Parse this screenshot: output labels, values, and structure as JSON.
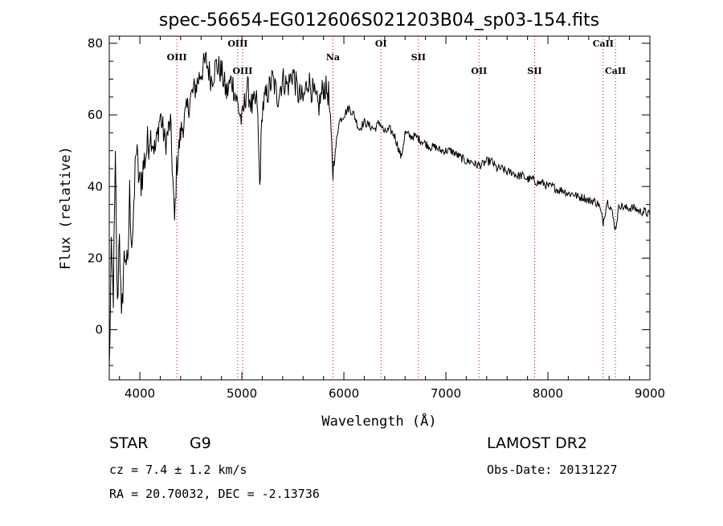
{
  "footer": {
    "obj_class": "STAR",
    "subclass": "G9",
    "survey": "LAMOST DR2",
    "cz": "cz = 7.4 ± 1.2 km/s",
    "obs_date": "Obs-Date: 20131227",
    "coords": "RA =  20.70032, DEC =  -2.13736"
  },
  "chart_data": {
    "type": "line",
    "title": "spec-56654-EG012606S021203B04_sp03-154.fits",
    "xlabel": "Wavelength (Å)",
    "ylabel": "Flux (relative)",
    "xlim": [
      3700,
      9000
    ],
    "ylim": [
      -14,
      82
    ],
    "xticks": [
      4000,
      5000,
      6000,
      7000,
      8000,
      9000
    ],
    "yticks": [
      0,
      20,
      40,
      60,
      80
    ],
    "xtick_labels": [
      "4000",
      "5000",
      "6000",
      "7000",
      "8000",
      "9000"
    ],
    "ytick_labels": [
      "0",
      "20",
      "40",
      "60",
      "80"
    ],
    "series": [
      {
        "x": [
          3700,
          3720,
          3740,
          3760,
          3780,
          3800,
          3820,
          3840,
          3860,
          3880,
          3900,
          3920,
          3940,
          3960,
          3980,
          4000,
          4050,
          4100,
          4150,
          4200,
          4250,
          4300,
          4340,
          4360,
          4400,
          4450,
          4500,
          4550,
          4600,
          4650,
          4700,
          4750,
          4800,
          4850,
          4900,
          4950,
          5000,
          5050,
          5100,
          5150,
          5175,
          5200,
          5250,
          5300,
          5350,
          5400,
          5450,
          5500,
          5550,
          5600,
          5650,
          5700,
          5750,
          5800,
          5850,
          5893,
          5950,
          6000,
          6050,
          6100,
          6150,
          6200,
          6250,
          6300,
          6350,
          6400,
          6450,
          6500,
          6563,
          6600,
          6650,
          6700,
          6750,
          6800,
          6850,
          6900,
          6950,
          7000,
          7050,
          7100,
          7150,
          7200,
          7250,
          7300,
          7350,
          7400,
          7450,
          7500,
          7550,
          7600,
          7650,
          7700,
          7750,
          7800,
          7850,
          7900,
          7950,
          8000,
          8050,
          8100,
          8150,
          8200,
          8250,
          8300,
          8350,
          8400,
          8450,
          8500,
          8542,
          8580,
          8620,
          8662,
          8700,
          8750,
          8800,
          8850,
          8900,
          8950,
          9000
        ],
        "values": [
          -12,
          20,
          10,
          46,
          5,
          30,
          0,
          18,
          22,
          15,
          38,
          25,
          30,
          52,
          45,
          40,
          48,
          55,
          50,
          60,
          52,
          58,
          30,
          45,
          55,
          60,
          65,
          68,
          72,
          75,
          70,
          74,
          72,
          66,
          70,
          64,
          58,
          68,
          62,
          64,
          40,
          62,
          66,
          70,
          65,
          70,
          68,
          72,
          66,
          64,
          70,
          66,
          62,
          68,
          66,
          44,
          58,
          60,
          62,
          60,
          56,
          58,
          57,
          56,
          58,
          55,
          56,
          54,
          48,
          55,
          54,
          54,
          53,
          52,
          51,
          51,
          50,
          50,
          50,
          49,
          48,
          47,
          47,
          46,
          46,
          47,
          47,
          45,
          45,
          44,
          44,
          43,
          43,
          42,
          42,
          41,
          41,
          40,
          40,
          39,
          39,
          38,
          38,
          37,
          37,
          36,
          36,
          35,
          30,
          36,
          34,
          28,
          35,
          34,
          34,
          34,
          33,
          33,
          32
        ]
      }
    ],
    "line_markers": [
      {
        "name": "OIII",
        "x": 4363
      },
      {
        "name": "OIII",
        "x": 4959
      },
      {
        "name": "OIII",
        "x": 5007
      },
      {
        "name": "Na",
        "x": 5893
      },
      {
        "name": "OI",
        "x": 6364
      },
      {
        "name": "SII",
        "x": 6731
      },
      {
        "name": "OII",
        "x": 7325
      },
      {
        "name": "SII",
        "x": 7870
      },
      {
        "name": "CaII",
        "x": 8542
      },
      {
        "name": "CaII",
        "x": 8662
      }
    ]
  }
}
